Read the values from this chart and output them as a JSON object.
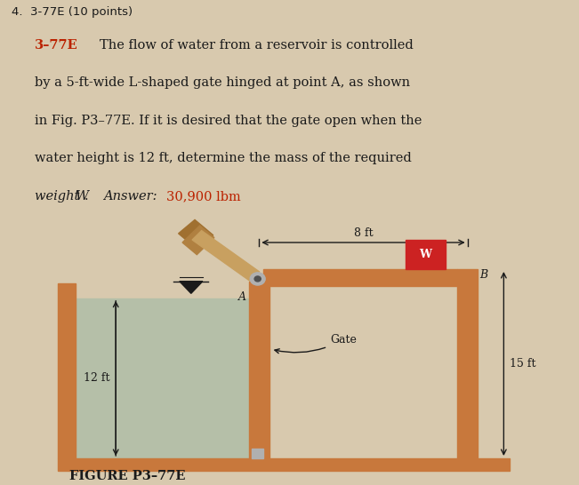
{
  "bg_color": "#d8c9ae",
  "title_number": "4.  3-77E (10 points)",
  "problem_label": "3–77E",
  "problem_label_color": "#bb2200",
  "line1": "  The flow of water from a reservoir is controlled",
  "line2": "by a 5-ft-wide L-shaped gate hinged at point A, as shown",
  "line3": "in Fig. P3–77E. If it is desired that the gate open when the",
  "line4": "water height is 12 ft, determine the mass of the required",
  "line5": "weight W.   Answer: 30,900 lbm",
  "answer_start": "weight W.   ",
  "answer_italic_label": "Answer:",
  "answer_value": " 30,900 lbm",
  "answer_color": "#bb2200",
  "figure_caption": "FIGURE P3–77E",
  "wall_color": "#c8783c",
  "water_color": "#b5bfa8",
  "ground_color": "#c8783c",
  "weight_color": "#cc2222",
  "text_color": "#1a1a1a",
  "strut_color": "#c8a060"
}
